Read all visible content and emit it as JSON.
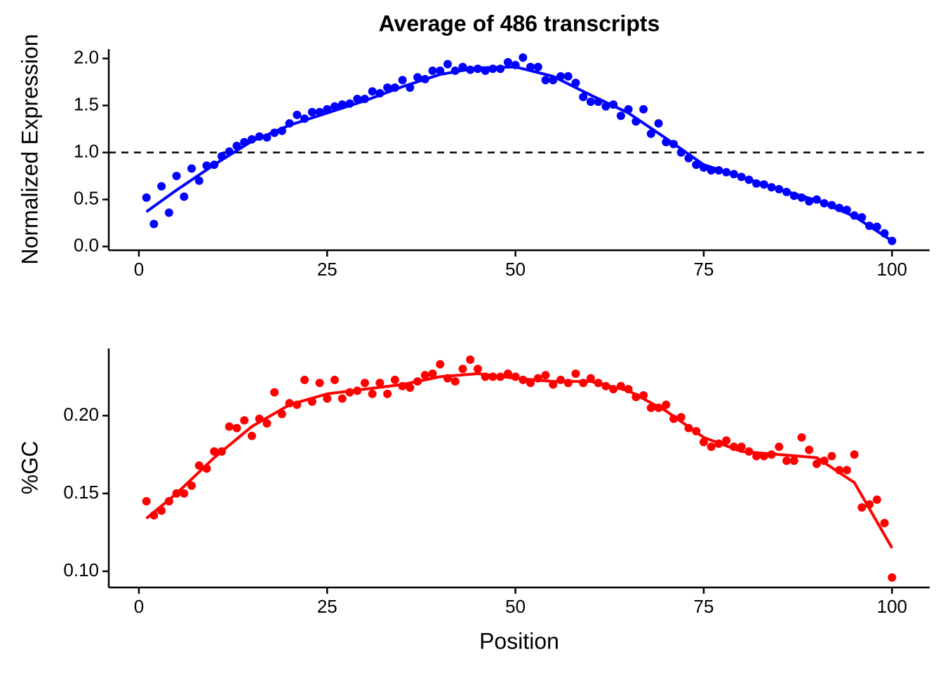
{
  "chart_data": [
    {
      "type": "scatter",
      "title": "Average of 486 transcripts",
      "ylabel": "Normalized Expression",
      "color": "#0000ff",
      "hline": 1.0,
      "x": [
        1,
        2,
        3,
        4,
        5,
        6,
        7,
        8,
        9,
        10,
        11,
        12,
        13,
        14,
        15,
        16,
        17,
        18,
        19,
        20,
        21,
        22,
        23,
        24,
        25,
        26,
        27,
        28,
        29,
        30,
        31,
        32,
        33,
        34,
        35,
        36,
        37,
        38,
        39,
        40,
        41,
        42,
        43,
        44,
        45,
        46,
        47,
        48,
        49,
        50,
        51,
        52,
        53,
        54,
        55,
        56,
        57,
        58,
        59,
        60,
        61,
        62,
        63,
        64,
        65,
        66,
        67,
        68,
        69,
        70,
        71,
        72,
        73,
        74,
        75,
        76,
        77,
        78,
        79,
        80,
        81,
        82,
        83,
        84,
        85,
        86,
        87,
        88,
        89,
        90,
        91,
        92,
        93,
        94,
        95,
        96,
        97,
        98,
        99,
        100
      ],
      "values": [
        0.52,
        0.24,
        0.64,
        0.36,
        0.75,
        0.53,
        0.83,
        0.7,
        0.86,
        0.87,
        0.96,
        1.01,
        1.07,
        1.11,
        1.14,
        1.17,
        1.16,
        1.21,
        1.23,
        1.31,
        1.4,
        1.36,
        1.43,
        1.43,
        1.46,
        1.49,
        1.51,
        1.52,
        1.57,
        1.57,
        1.65,
        1.63,
        1.69,
        1.69,
        1.77,
        1.69,
        1.8,
        1.78,
        1.87,
        1.87,
        1.94,
        1.87,
        1.91,
        1.88,
        1.89,
        1.87,
        1.89,
        1.89,
        1.96,
        1.93,
        2.01,
        1.91,
        1.91,
        1.77,
        1.77,
        1.81,
        1.81,
        1.74,
        1.59,
        1.54,
        1.54,
        1.49,
        1.51,
        1.39,
        1.46,
        1.33,
        1.46,
        1.2,
        1.31,
        1.11,
        1.09,
        1.0,
        0.94,
        0.87,
        0.84,
        0.81,
        0.81,
        0.79,
        0.77,
        0.74,
        0.71,
        0.67,
        0.66,
        0.63,
        0.61,
        0.58,
        0.54,
        0.52,
        0.48,
        0.5,
        0.46,
        0.44,
        0.41,
        0.39,
        0.33,
        0.31,
        0.22,
        0.21,
        0.14,
        0.06
      ],
      "smooth": {
        "x": [
          1,
          5,
          10,
          15,
          20,
          25,
          30,
          35,
          40,
          45,
          50,
          55,
          60,
          65,
          70,
          75,
          80,
          85,
          90,
          95,
          100
        ],
        "values": [
          0.37,
          0.6,
          0.87,
          1.12,
          1.29,
          1.42,
          1.55,
          1.7,
          1.83,
          1.9,
          1.91,
          1.81,
          1.61,
          1.42,
          1.15,
          0.87,
          0.74,
          0.61,
          0.49,
          0.32,
          0.06
        ]
      },
      "xlim": [
        -4,
        105
      ],
      "xticks": [
        0,
        25,
        50,
        75,
        100
      ],
      "ylim": [
        -0.04,
        2.1
      ],
      "yticks": [
        {
          "value": 0,
          "label": "0.0"
        },
        0.5,
        {
          "value": 1,
          "label": "1.0"
        },
        1.5,
        {
          "value": 2,
          "label": "2.0"
        }
      ]
    },
    {
      "type": "scatter",
      "xlabel": "Position",
      "ylabel": "%GC",
      "color": "#ff0000",
      "x": [
        1,
        2,
        3,
        4,
        5,
        6,
        7,
        8,
        9,
        10,
        11,
        12,
        13,
        14,
        15,
        16,
        17,
        18,
        19,
        20,
        21,
        22,
        23,
        24,
        25,
        26,
        27,
        28,
        29,
        30,
        31,
        32,
        33,
        34,
        35,
        36,
        37,
        38,
        39,
        40,
        41,
        42,
        43,
        44,
        45,
        46,
        47,
        48,
        49,
        50,
        51,
        52,
        53,
        54,
        55,
        56,
        57,
        58,
        59,
        60,
        61,
        62,
        63,
        64,
        65,
        66,
        67,
        68,
        69,
        70,
        71,
        72,
        73,
        74,
        75,
        76,
        77,
        78,
        79,
        80,
        81,
        82,
        83,
        84,
        85,
        86,
        87,
        88,
        89,
        90,
        91,
        92,
        93,
        94,
        95,
        96,
        97,
        98,
        99,
        100
      ],
      "values": [
        0.145,
        0.136,
        0.139,
        0.145,
        0.15,
        0.15,
        0.155,
        0.168,
        0.166,
        0.177,
        0.177,
        0.193,
        0.192,
        0.197,
        0.187,
        0.198,
        0.195,
        0.215,
        0.201,
        0.208,
        0.207,
        0.223,
        0.209,
        0.221,
        0.211,
        0.223,
        0.211,
        0.215,
        0.216,
        0.221,
        0.214,
        0.221,
        0.214,
        0.223,
        0.219,
        0.218,
        0.222,
        0.226,
        0.227,
        0.233,
        0.224,
        0.222,
        0.23,
        0.236,
        0.23,
        0.225,
        0.225,
        0.225,
        0.227,
        0.225,
        0.223,
        0.221,
        0.224,
        0.226,
        0.22,
        0.223,
        0.221,
        0.227,
        0.221,
        0.224,
        0.221,
        0.219,
        0.217,
        0.219,
        0.217,
        0.212,
        0.213,
        0.205,
        0.205,
        0.207,
        0.198,
        0.199,
        0.192,
        0.19,
        0.183,
        0.18,
        0.182,
        0.184,
        0.18,
        0.18,
        0.177,
        0.174,
        0.174,
        0.175,
        0.18,
        0.171,
        0.171,
        0.186,
        0.178,
        0.169,
        0.171,
        0.174,
        0.165,
        0.165,
        0.175,
        0.141,
        0.143,
        0.146,
        0.131,
        0.096
      ],
      "smooth": {
        "x": [
          1,
          5,
          10,
          15,
          20,
          25,
          30,
          35,
          40,
          45,
          50,
          55,
          60,
          65,
          70,
          75,
          80,
          85,
          90,
          95,
          100
        ],
        "values": [
          0.134,
          0.15,
          0.173,
          0.193,
          0.207,
          0.214,
          0.217,
          0.22,
          0.225,
          0.227,
          0.224,
          0.222,
          0.222,
          0.216,
          0.203,
          0.186,
          0.177,
          0.175,
          0.173,
          0.157,
          0.115
        ]
      },
      "xlim": [
        -4,
        105
      ],
      "xticks": [
        0,
        25,
        50,
        75,
        100
      ],
      "ylim": [
        0.0896,
        0.2432
      ],
      "yticks": [
        {
          "value": 0.1,
          "label": "0.10"
        },
        {
          "value": 0.15,
          "label": "0.15"
        },
        {
          "value": 0.2,
          "label": "0.20"
        }
      ]
    }
  ]
}
